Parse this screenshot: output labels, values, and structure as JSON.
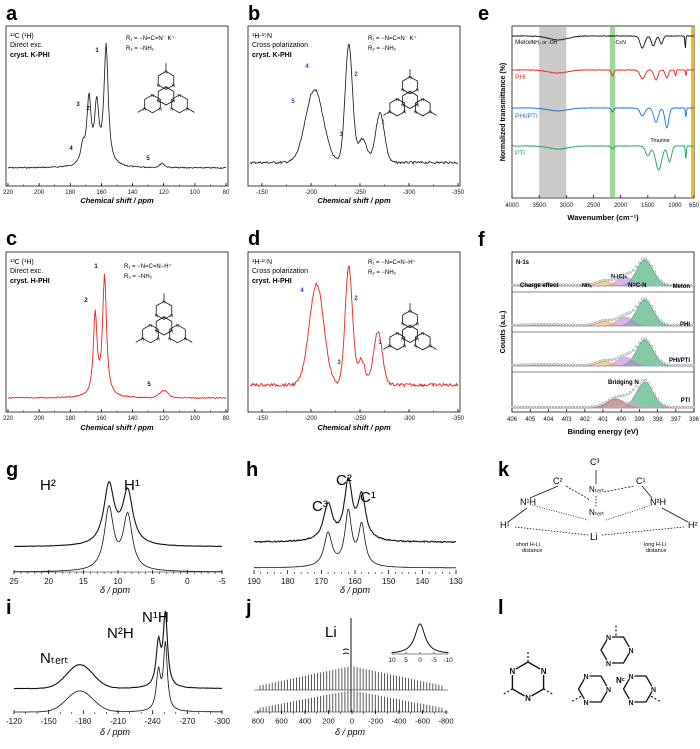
{
  "colors": {
    "black": "#111111",
    "red": "#e8231f",
    "blue": "#1f6fd1",
    "green": "#1f9e5a",
    "gray_band": "#bdbdbd",
    "green_band": "#8fd18a",
    "yellow_edge": "#f2c200",
    "nmr_blue_label": "#1f3fbf"
  },
  "panels": {
    "a": {
      "letter": "a",
      "info": [
        "¹³C (¹H)",
        "Direct exc."
      ],
      "sample": "cryst. K-PHI",
      "xlabel": "Chemical shift / ppm",
      "ticks": [
        "220",
        "200",
        "180",
        "160",
        "140",
        "120",
        "100",
        "80"
      ],
      "peaks": [
        "1",
        "2",
        "3",
        "4",
        "5"
      ],
      "r1": "R₁ = −N=C=N⁻  K⁺",
      "r2": "R₂ = −NH₂"
    },
    "b": {
      "letter": "b",
      "info": [
        "¹H-¹⁵N",
        "Cross polarization"
      ],
      "sample": "cryst. K-PHI",
      "xlabel": "Chemical shift / ppm",
      "ticks": [
        "-150",
        "-200",
        "-250",
        "-300",
        "-350"
      ],
      "peaks": [
        "1",
        "2",
        "3",
        "4",
        "5"
      ],
      "r1": "R₁ = −N=C=N⁻  K⁺",
      "r2": "R₂ = −NH₂"
    },
    "c": {
      "letter": "c",
      "info": [
        "¹³C (¹H)",
        "Direct exc."
      ],
      "sample": "cryst. H-PHI",
      "xlabel": "Chemical shift / ppm",
      "ticks": [
        "220",
        "200",
        "180",
        "160",
        "140",
        "120",
        "100",
        "80"
      ],
      "peaks": [
        "1",
        "2",
        "5"
      ],
      "r1": "R₁ = −N=C=N−H⁺",
      "r2": "R₂ = −NH₂"
    },
    "d": {
      "letter": "d",
      "info": [
        "¹H-¹⁵N",
        "Cross polarization"
      ],
      "sample": "cryst. H-PHI",
      "xlabel": "Chemical shift / ppm",
      "ticks": [
        "-150",
        "-200",
        "-250",
        "-300",
        "-350"
      ],
      "peaks": [
        "1",
        "2",
        "3",
        "4"
      ],
      "r1": "R₁ = −N=C=N−H⁺",
      "r2": "R₂ = −NH₂"
    },
    "e": {
      "letter": "e",
      "ylabel": "Normalized transmittance (%)",
      "xlabel": "Wavenumber (cm⁻¹)",
      "ticks": [
        "4000",
        "3500",
        "3000",
        "2500",
        "2000",
        "1500",
        "1000",
        "650"
      ],
      "series": [
        "Melon",
        "PHI",
        "PHI/PTI",
        "PTI"
      ],
      "band1": "-NH₂ or -OH",
      "band2": "-C≡N",
      "triazine": "Triazine"
    },
    "f": {
      "letter": "f",
      "ylabel": "Counts (a.u.)",
      "xlabel": "Binding energy (eV)",
      "ticks": [
        "406",
        "405",
        "404",
        "403",
        "402",
        "401",
        "400",
        "399",
        "398",
        "397",
        "396"
      ],
      "title": "N-1s",
      "labels": [
        "Charge effect",
        "-NHₓ",
        "N-(C)₃",
        "N=C-N",
        "Bridging N"
      ],
      "series": [
        "Melon",
        "PHI",
        "PHI/PTI",
        "PTI"
      ]
    },
    "g": {
      "letter": "g",
      "xlabel": "δ / ppm",
      "ticks": [
        "25",
        "20",
        "15",
        "10",
        "5",
        "0",
        "-5"
      ],
      "peaks": [
        "H²",
        "H¹"
      ]
    },
    "h": {
      "letter": "h",
      "xlabel": "δ / ppm",
      "ticks": [
        "190",
        "180",
        "170",
        "160",
        "150",
        "140",
        "130"
      ],
      "peaks": [
        "C³",
        "C²",
        "C¹"
      ]
    },
    "i": {
      "letter": "i",
      "xlabel": "δ / ppm",
      "ticks": [
        "-120",
        "-150",
        "-180",
        "-210",
        "-240",
        "-270",
        "-300"
      ],
      "peaks": [
        "Nₜₑᵣₜ",
        "N²H",
        "N¹H"
      ]
    },
    "j": {
      "letter": "j",
      "xlabel": "δ / ppm",
      "ticks": [
        "800",
        "600",
        "400",
        "200",
        "0",
        "-200",
        "-400",
        "-600",
        "-800"
      ],
      "peak": "Li",
      "inset_ticks": [
        "10",
        "5",
        "0",
        "-5",
        "-10"
      ]
    },
    "k": {
      "letter": "k",
      "labels": {
        "c2": "C²",
        "c3": "C³",
        "c1": "C¹",
        "n1h": "N¹H",
        "nter": "Nₜₑᵣₜ",
        "nter2": "Nₜₑᵣₜ",
        "n2h": "N²H",
        "h1": "H¹",
        "h2": "H²",
        "li": "Li",
        "short": "short H-Li\ndistance",
        "long": "long H-Li\ndistance"
      }
    },
    "l": {
      "letter": "l",
      "nc": "Nᶜ"
    }
  },
  "chart_data": [
    {
      "panel": "a",
      "type": "line",
      "title": "",
      "xlabel": "Chemical shift / ppm",
      "ylabel": "",
      "xlim": [
        220,
        80
      ],
      "peaks": [
        {
          "label": "1",
          "x": 157,
          "rel_height": 1.0
        },
        {
          "label": "2",
          "x": 163,
          "rel_height": 0.48
        },
        {
          "label": "3",
          "x": 168,
          "rel_height": 0.55
        },
        {
          "label": "4",
          "x": 172,
          "rel_height": 0.14
        },
        {
          "label": "5",
          "x": 121,
          "rel_height": 0.04
        }
      ]
    },
    {
      "panel": "b",
      "type": "line",
      "title": "",
      "xlabel": "Chemical shift / ppm",
      "ylabel": "",
      "xlim": [
        -150,
        -350
      ],
      "peaks": [
        {
          "label": "5",
          "x": -210,
          "rel_height": 0.6
        },
        {
          "label": "4",
          "x": -216,
          "rel_height": 0.7
        },
        {
          "label": "2",
          "x": -245,
          "rel_height": 1.0
        },
        {
          "label": "3",
          "x": -255,
          "rel_height": 0.3
        },
        {
          "label": "1",
          "x": -275,
          "rel_height": 0.45
        }
      ]
    },
    {
      "panel": "c",
      "type": "line",
      "title": "",
      "xlabel": "Chemical shift / ppm",
      "ylabel": "",
      "xlim": [
        220,
        80
      ],
      "peaks": [
        {
          "label": "1",
          "x": 158,
          "rel_height": 1.0
        },
        {
          "label": "2",
          "x": 164,
          "rel_height": 0.68
        },
        {
          "label": "5",
          "x": 120,
          "rel_height": 0.06
        }
      ]
    },
    {
      "panel": "d",
      "type": "line",
      "title": "",
      "xlabel": "Chemical shift / ppm",
      "ylabel": "",
      "xlim": [
        -150,
        -350
      ],
      "peaks": [
        {
          "label": "4",
          "x": -216,
          "rel_height": 0.85
        },
        {
          "label": "2",
          "x": -245,
          "rel_height": 1.0
        },
        {
          "label": "3",
          "x": -255,
          "rel_height": 0.3
        },
        {
          "label": "1",
          "x": -272,
          "rel_height": 0.5
        }
      ]
    },
    {
      "panel": "e",
      "type": "line",
      "title": "",
      "xlabel": "Wavenumber (cm⁻¹)",
      "ylabel": "Normalized transmittance (%)",
      "xlim": [
        4000,
        650
      ],
      "series": [
        {
          "name": "Melon"
        },
        {
          "name": "PHI"
        },
        {
          "name": "PHI/PTI"
        },
        {
          "name": "PTI"
        }
      ],
      "bands": [
        {
          "label": "-NH₂ or -OH",
          "from": 3500,
          "to": 3000
        },
        {
          "label": "-C≡N",
          "from": 2200,
          "to": 2100
        }
      ]
    },
    {
      "panel": "f",
      "type": "line",
      "title": "N-1s",
      "xlabel": "Binding energy (eV)",
      "ylabel": "Counts (a.u.)",
      "xlim": [
        406,
        396
      ],
      "series": [
        {
          "name": "Melon"
        },
        {
          "name": "PHI"
        },
        {
          "name": "PHI/PTI"
        },
        {
          "name": "PTI"
        }
      ],
      "components": [
        {
          "name": "N=C-N",
          "x": 398.7
        },
        {
          "name": "N-(C)₃",
          "x": 399.8
        },
        {
          "name": "-NHₓ",
          "x": 400.9
        },
        {
          "name": "Charge effect",
          "x": 404.2
        },
        {
          "name": "Bridging N",
          "x": 400.3
        }
      ]
    },
    {
      "panel": "g",
      "type": "line",
      "title": "",
      "xlabel": "δ / ppm",
      "ylabel": "",
      "xlim": [
        25,
        -5
      ],
      "peaks": [
        {
          "label": "H²",
          "x": 11.3,
          "rel_height": 1.0
        },
        {
          "label": "H¹",
          "x": 8.6,
          "rel_height": 0.88
        }
      ]
    },
    {
      "panel": "h",
      "type": "line",
      "title": "",
      "xlabel": "δ / ppm",
      "ylabel": "",
      "xlim": [
        190,
        130
      ],
      "peaks": [
        {
          "label": "C³",
          "x": 168,
          "rel_height": 0.62
        },
        {
          "label": "C²",
          "x": 162,
          "rel_height": 1.0
        },
        {
          "label": "C¹",
          "x": 158,
          "rel_height": 0.75
        }
      ]
    },
    {
      "panel": "i",
      "type": "line",
      "title": "",
      "xlabel": "δ / ppm",
      "ylabel": "",
      "xlim": [
        -120,
        -300
      ],
      "peaks": [
        {
          "label": "Nₜₑᵣₜ",
          "x": -177,
          "rel_height": 0.33
        },
        {
          "label": "N²H",
          "x": -245,
          "rel_height": 0.6
        },
        {
          "label": "N¹H",
          "x": -250,
          "rel_height": 1.0
        }
      ]
    },
    {
      "panel": "j",
      "type": "line",
      "title": "",
      "xlabel": "δ / ppm",
      "ylabel": "",
      "xlim": [
        800,
        -800
      ],
      "peaks": [
        {
          "label": "Li",
          "x": 0,
          "rel_height": 1.0
        }
      ],
      "spinning_sideband_spacing": 50
    }
  ]
}
